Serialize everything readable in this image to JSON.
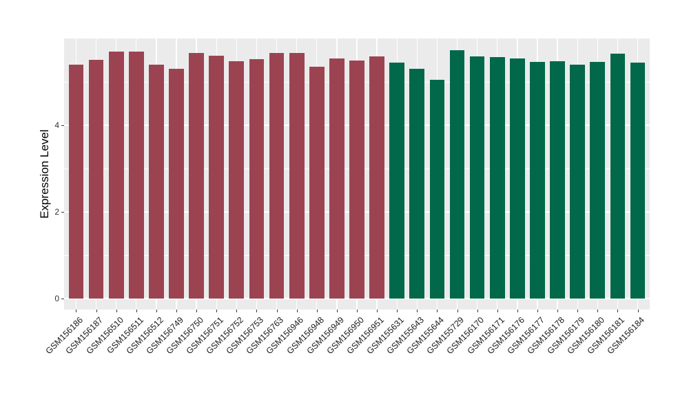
{
  "figure": {
    "kind": "ggplot-style bar chart",
    "background_color": "#FFFFFF",
    "panel_color": "#EBEBEB",
    "grid_color": "#FFFFFF",
    "tick_color": "#333333",
    "axis_text_color": "#1A1A1A"
  },
  "chart_data": {
    "type": "bar",
    "title": "",
    "xlabel": "",
    "ylabel": "Expression Level",
    "ylim": [
      0,
      6
    ],
    "yticks_major": [
      0,
      2,
      4
    ],
    "yticks_minor": [
      1,
      3,
      5
    ],
    "grid": "on (white major/minor gridlines over gray panel)",
    "legend_position": "none",
    "categories": [
      "GSM156186",
      "GSM156187",
      "GSM156510",
      "GSM156511",
      "GSM156512",
      "GSM156749",
      "GSM156750",
      "GSM156751",
      "GSM156752",
      "GSM156753",
      "GSM156763",
      "GSM156946",
      "GSM156948",
      "GSM156949",
      "GSM156950",
      "GSM156951",
      "GSM155631",
      "GSM155643",
      "GSM155644",
      "GSM155729",
      "GSM156170",
      "GSM156171",
      "GSM156176",
      "GSM156177",
      "GSM156178",
      "GSM156179",
      "GSM156180",
      "GSM156181",
      "GSM156184"
    ],
    "values": [
      5.4,
      5.51,
      5.7,
      5.7,
      5.4,
      5.3,
      5.67,
      5.61,
      5.48,
      5.52,
      5.66,
      5.66,
      5.35,
      5.54,
      5.49,
      5.59,
      5.45,
      5.3,
      5.05,
      5.73,
      5.59,
      5.57,
      5.54,
      5.46,
      5.47,
      5.4,
      5.46,
      5.65,
      5.45
    ],
    "group_index": [
      0,
      0,
      0,
      0,
      0,
      0,
      0,
      0,
      0,
      0,
      0,
      0,
      0,
      0,
      0,
      0,
      1,
      1,
      1,
      1,
      1,
      1,
      1,
      1,
      1,
      1,
      1,
      1,
      1
    ],
    "group_colors": [
      "#9C4352",
      "#02684A"
    ]
  }
}
